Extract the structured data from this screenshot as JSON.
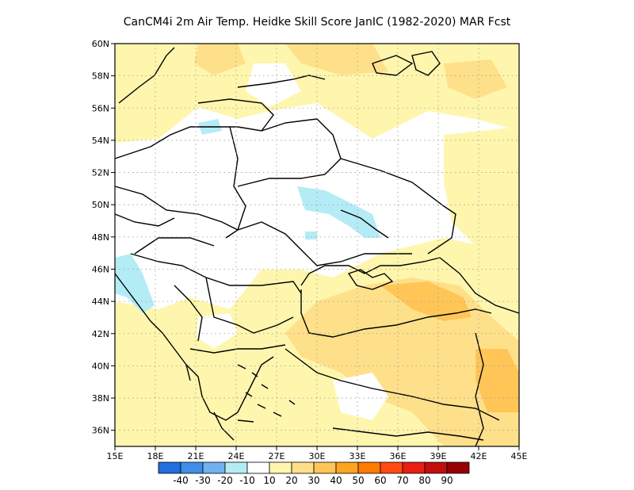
{
  "title": "CanCM4i  2m Air Temp. Heidke Skill Score JanIC (1982-2020) MAR Fcst",
  "map": {
    "lon_range": [
      15,
      45
    ],
    "lat_range": [
      35,
      60
    ],
    "x_ticks": [
      "15E",
      "18E",
      "21E",
      "24E",
      "27E",
      "30E",
      "33E",
      "36E",
      "39E",
      "42E",
      "45E"
    ],
    "y_ticks": [
      "36N",
      "38N",
      "40N",
      "42N",
      "44N",
      "46N",
      "48N",
      "50N",
      "52N",
      "54N",
      "56N",
      "58N",
      "60N"
    ],
    "grid": "dotted",
    "land_color": "#ffffff",
    "border_color": "#000000"
  },
  "colorbar": {
    "colors": [
      "#1f6fe0",
      "#3f8fe8",
      "#72b1f0",
      "#b4ecf5",
      "#ffffff",
      "#fff6ae",
      "#ffe08a",
      "#ffc657",
      "#ffa421",
      "#ff7a00",
      "#ff4a10",
      "#e91e10",
      "#c40d0d",
      "#960000"
    ],
    "labels": [
      "-40",
      "-30",
      "-20",
      "-10",
      "10",
      "20",
      "30",
      "40",
      "50",
      "60",
      "70",
      "80",
      "90"
    ]
  }
}
